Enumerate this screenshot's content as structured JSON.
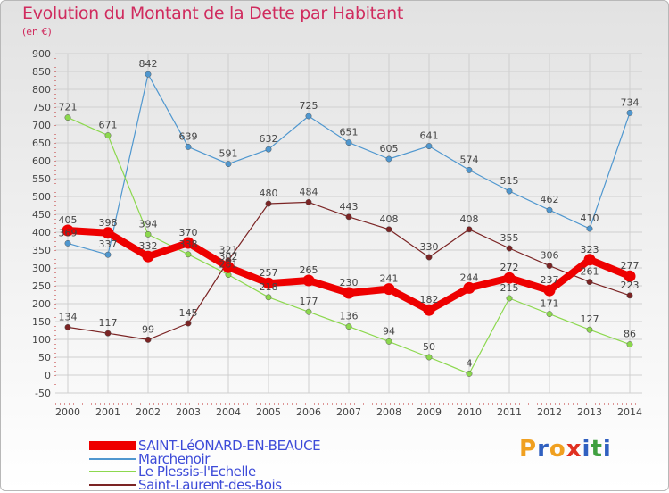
{
  "title": "Evolution du Montant de la Dette par Habitant",
  "unit": "(en €)",
  "chart_data": {
    "type": "line",
    "title": "Evolution du Montant de la Dette par Habitant",
    "ylabel": "(en €)",
    "xlabel": "",
    "x": [
      "2000",
      "2001",
      "2002",
      "2003",
      "2004",
      "2005",
      "2006",
      "2007",
      "2008",
      "2009",
      "2010",
      "2011",
      "2012",
      "2013",
      "2014"
    ],
    "ylim": [
      -50,
      900
    ],
    "yticks": [
      -50,
      0,
      50,
      100,
      150,
      200,
      250,
      300,
      350,
      400,
      450,
      500,
      550,
      600,
      650,
      700,
      750,
      800,
      850,
      900
    ],
    "grid": true,
    "legend_position": "bottom-left",
    "series": [
      {
        "name": "SAINT-LéONARD-EN-BEAUCE",
        "color": "#ee0000",
        "width": 8,
        "values": [
          405,
          398,
          332,
          370,
          302,
          257,
          265,
          230,
          241,
          182,
          244,
          272,
          237,
          323,
          277
        ]
      },
      {
        "name": "Marchenoir",
        "color": "#4f97cf",
        "width": 1.2,
        "values": [
          369,
          337,
          842,
          639,
          591,
          632,
          725,
          651,
          605,
          641,
          574,
          515,
          462,
          410,
          734
        ]
      },
      {
        "name": "Le Plessis-l'Echelle",
        "color": "#8cd84e",
        "width": 1.2,
        "values": [
          721,
          671,
          394,
          338,
          281,
          218,
          177,
          136,
          94,
          50,
          4,
          215,
          171,
          127,
          86
        ]
      },
      {
        "name": "Saint-Laurent-des-Bois",
        "color": "#7b2424",
        "width": 1.2,
        "values": [
          134,
          117,
          99,
          145,
          321,
          480,
          484,
          443,
          408,
          330,
          408,
          355,
          306,
          261,
          223
        ]
      }
    ]
  },
  "logo": {
    "text": "Proxiti",
    "colors": [
      "#f0a020",
      "#3060c0",
      "#f0a020",
      "#e03020",
      "#3060c0",
      "#40a040",
      "#3060c0"
    ]
  }
}
